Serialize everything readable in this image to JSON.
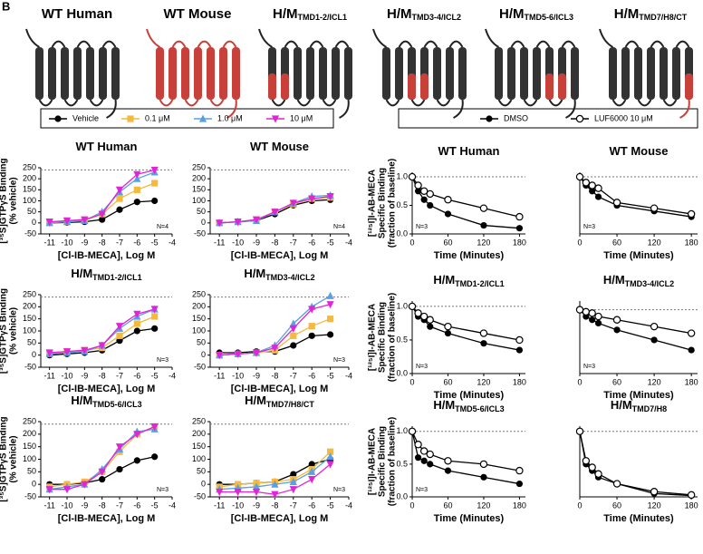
{
  "panel_label": "B",
  "receptors": [
    {
      "main": "WT Human"
    },
    {
      "main": "WT Mouse"
    },
    {
      "main": "H/M",
      "sub": "TMD1-2/ICL1"
    },
    {
      "main": "H/M",
      "sub": "TMD3-4/ICL2"
    },
    {
      "main": "H/M",
      "sub": "TMD5-6/ICL3"
    },
    {
      "main": "H/M",
      "sub": "TMD7/H8/CT"
    }
  ],
  "chart_data": [
    {
      "type": "line",
      "title": "WT Human",
      "x": [
        -11,
        -10,
        -9,
        -8,
        -7,
        -6,
        -5
      ],
      "xlim": [
        -11.5,
        -4
      ],
      "xticks": [
        -11,
        -10,
        -9,
        -8,
        -7,
        -6,
        -5,
        -4
      ],
      "ylim": [
        -50,
        250
      ],
      "yticks": [
        -50,
        0,
        50,
        100,
        150,
        200,
        250
      ],
      "ref_line": 240,
      "note": "N=4",
      "y_label": [
        "[³⁵S]GTPγS Binding",
        "(% vehicle)"
      ],
      "x_label": "[Cl-IB-MECA], Log M",
      "series": [
        {
          "name": "Vehicle",
          "color": "#000000",
          "marker": "circle",
          "values": [
            0,
            2,
            5,
            15,
            60,
            95,
            100
          ]
        },
        {
          "name": "0.1 μM",
          "color": "#f5b93e",
          "marker": "square",
          "values": [
            5,
            5,
            10,
            40,
            110,
            150,
            180
          ]
        },
        {
          "name": "1.0 μM",
          "color": "#5b9fe3",
          "marker": "triangle",
          "values": [
            0,
            5,
            10,
            50,
            140,
            200,
            230
          ]
        },
        {
          "name": "10 μM",
          "color": "#e024d8",
          "marker": "triangle-down",
          "values": [
            5,
            10,
            15,
            40,
            150,
            220,
            240
          ]
        }
      ]
    },
    {
      "type": "line",
      "title": "WT Mouse",
      "x": [
        -11,
        -10,
        -9,
        -8,
        -7,
        -6,
        -5
      ],
      "xlim": [
        -11.5,
        -4
      ],
      "xticks": [
        -11,
        -10,
        -9,
        -8,
        -7,
        -6,
        -5,
        -4
      ],
      "ylim": [
        -50,
        250
      ],
      "yticks": [
        -50,
        0,
        50,
        100,
        150,
        200,
        250
      ],
      "ref_line": 240,
      "note": "N=4",
      "x_label": "[Cl-IB-MECA], Log M",
      "series": [
        {
          "name": "Vehicle",
          "color": "#000000",
          "marker": "circle",
          "values": [
            0,
            5,
            10,
            40,
            80,
            100,
            105
          ]
        },
        {
          "name": "0.1 μM",
          "color": "#f5b93e",
          "marker": "square",
          "values": [
            0,
            5,
            15,
            50,
            85,
            110,
            115
          ]
        },
        {
          "name": "1.0 μM",
          "color": "#5b9fe3",
          "marker": "triangle",
          "values": [
            0,
            5,
            10,
            50,
            90,
            120,
            125
          ]
        },
        {
          "name": "10 μM",
          "color": "#e024d8",
          "marker": "triangle-down",
          "values": [
            0,
            5,
            15,
            50,
            90,
            110,
            120
          ]
        }
      ]
    },
    {
      "type": "line",
      "title": "H/M",
      "title_sub": "TMD1-2/ICL1",
      "x": [
        -11,
        -10,
        -9,
        -8,
        -7,
        -6,
        -5
      ],
      "xlim": [
        -11.5,
        -4
      ],
      "xticks": [
        -11,
        -10,
        -9,
        -8,
        -7,
        -6,
        -5,
        -4
      ],
      "ylim": [
        -50,
        250
      ],
      "yticks": [
        -50,
        0,
        50,
        100,
        150,
        200,
        250
      ],
      "ref_line": 240,
      "note": "N=3",
      "y_label": [
        "[³⁵S]GTPγS Binding",
        "(% vehicle)"
      ],
      "x_label": "[Cl-IB-MECA], Log M",
      "series": [
        {
          "name": "Vehicle",
          "color": "#000000",
          "marker": "circle",
          "values": [
            0,
            5,
            10,
            20,
            60,
            100,
            110
          ]
        },
        {
          "name": "0.1 μM",
          "color": "#f5b93e",
          "marker": "square",
          "values": [
            10,
            15,
            20,
            30,
            80,
            130,
            160
          ]
        },
        {
          "name": "1.0 μM",
          "color": "#5b9fe3",
          "marker": "triangle",
          "values": [
            5,
            10,
            15,
            40,
            110,
            160,
            190
          ]
        },
        {
          "name": "10 μM",
          "color": "#e024d8",
          "marker": "triangle-down",
          "values": [
            10,
            15,
            20,
            40,
            120,
            170,
            190
          ]
        }
      ]
    },
    {
      "type": "line",
      "title": "H/M",
      "title_sub": "TMD3-4/ICL2",
      "x": [
        -11,
        -10,
        -9,
        -8,
        -7,
        -6,
        -5
      ],
      "xlim": [
        -11.5,
        -4
      ],
      "xticks": [
        -11,
        -10,
        -9,
        -8,
        -7,
        -6,
        -5,
        -4
      ],
      "ylim": [
        -50,
        250
      ],
      "yticks": [
        -50,
        0,
        50,
        100,
        150,
        200,
        250
      ],
      "ref_line": 240,
      "note": "N=3",
      "x_label": "[Cl-IB-MECA], Log M",
      "series": [
        {
          "name": "Vehicle",
          "color": "#000000",
          "marker": "circle",
          "values": [
            10,
            10,
            15,
            15,
            40,
            80,
            85
          ]
        },
        {
          "name": "0.1 μM",
          "color": "#f5b93e",
          "marker": "square",
          "values": [
            0,
            5,
            10,
            20,
            80,
            120,
            150
          ]
        },
        {
          "name": "1.0 μM",
          "color": "#5b9fe3",
          "marker": "triangle",
          "values": [
            0,
            5,
            10,
            40,
            130,
            200,
            245
          ]
        },
        {
          "name": "10 μM",
          "color": "#e024d8",
          "marker": "triangle-down",
          "values": [
            0,
            5,
            10,
            30,
            110,
            190,
            210
          ]
        }
      ]
    },
    {
      "type": "line",
      "title": "H/M",
      "title_sub": "TMD5-6/ICL3",
      "x": [
        -11,
        -10,
        -9,
        -8,
        -7,
        -6,
        -5
      ],
      "xlim": [
        -11.5,
        -4
      ],
      "xticks": [
        -11,
        -10,
        -9,
        -8,
        -7,
        -6,
        -5,
        -4
      ],
      "ylim": [
        -50,
        250
      ],
      "yticks": [
        -50,
        0,
        50,
        100,
        150,
        200,
        250
      ],
      "ref_line": 240,
      "note": "N=3",
      "y_label": [
        "[³⁵S]GTPγS Binding",
        "(% vehicle)"
      ],
      "x_label": "[Cl-IB-MECA], Log M",
      "series": [
        {
          "name": "Vehicle",
          "color": "#000000",
          "marker": "circle",
          "values": [
            0,
            0,
            5,
            20,
            60,
            95,
            110
          ]
        },
        {
          "name": "0.1 μM",
          "color": "#f5b93e",
          "marker": "square",
          "values": [
            -10,
            0,
            10,
            50,
            130,
            200,
            230
          ]
        },
        {
          "name": "1.0 μM",
          "color": "#5b9fe3",
          "marker": "triangle",
          "values": [
            -20,
            -10,
            0,
            60,
            140,
            210,
            220
          ]
        },
        {
          "name": "10 μM",
          "color": "#e024d8",
          "marker": "triangle-down",
          "values": [
            -20,
            -20,
            0,
            50,
            150,
            200,
            230
          ]
        }
      ]
    },
    {
      "type": "line",
      "title": "H/M",
      "title_sub": "TMD7/H8/CT",
      "x": [
        -11,
        -10,
        -9,
        -8,
        -7,
        -6,
        -5
      ],
      "xlim": [
        -11.5,
        -4
      ],
      "xticks": [
        -11,
        -10,
        -9,
        -8,
        -7,
        -6,
        -5,
        -4
      ],
      "ylim": [
        -50,
        250
      ],
      "yticks": [
        -50,
        0,
        50,
        100,
        150,
        200,
        250
      ],
      "ref_line": 240,
      "note": "N=3",
      "x_label": "[Cl-IB-MECA], Log M",
      "series": [
        {
          "name": "Vehicle",
          "color": "#000000",
          "marker": "circle",
          "values": [
            0,
            0,
            5,
            10,
            40,
            80,
            100
          ]
        },
        {
          "name": "0.1 μM",
          "color": "#f5b93e",
          "marker": "square",
          "values": [
            -10,
            0,
            5,
            10,
            20,
            60,
            130
          ]
        },
        {
          "name": "1.0 μM",
          "color": "#5b9fe3",
          "marker": "triangle",
          "values": [
            -20,
            -15,
            -10,
            0,
            10,
            50,
            110
          ]
        },
        {
          "name": "10 μM",
          "color": "#e024d8",
          "marker": "triangle-down",
          "values": [
            -30,
            -30,
            -30,
            -40,
            -20,
            20,
            80
          ]
        }
      ]
    },
    {
      "type": "line",
      "title": "WT Human",
      "x": [
        0,
        10,
        20,
        30,
        60,
        120,
        180
      ],
      "xlim": [
        0,
        190
      ],
      "xticks": [
        0,
        60,
        120,
        180
      ],
      "ylim": [
        0,
        1.08
      ],
      "yticks": [
        {
          "value": 0,
          "label": "0.0"
        },
        {
          "value": 0.5,
          "label": "0.5"
        },
        {
          "value": 1,
          "label": "1.0"
        }
      ],
      "ref_line": 1,
      "note": "N=3",
      "y_label": [
        "[¹²⁵I]I-AB-MECA",
        "Specific Binding",
        "(fraction of baseline)"
      ],
      "x_label": "Time (Minutes)",
      "series": [
        {
          "name": "DMSO",
          "color": "#000000",
          "marker": "circle",
          "values": [
            1,
            0.75,
            0.6,
            0.5,
            0.35,
            0.15,
            0.1
          ]
        },
        {
          "name": "LUF6000 10 μM",
          "color": "#000000",
          "marker": "circle-open",
          "values": [
            1,
            0.85,
            0.75,
            0.7,
            0.6,
            0.45,
            0.3
          ]
        }
      ]
    },
    {
      "type": "line",
      "title": "WT Mouse",
      "x": [
        0,
        10,
        20,
        30,
        60,
        120,
        180
      ],
      "xlim": [
        0,
        190
      ],
      "xticks": [
        0,
        60,
        120,
        180
      ],
      "ylim": [
        0,
        1.08
      ],
      "ref_line": 1,
      "note": "N=3",
      "x_label": "Time (Minutes)",
      "series": [
        {
          "name": "DMSO",
          "color": "#000000",
          "marker": "circle",
          "values": [
            1,
            0.85,
            0.75,
            0.65,
            0.5,
            0.4,
            0.3
          ]
        },
        {
          "name": "LUF6000 10 μM",
          "color": "#000000",
          "marker": "circle-open",
          "values": [
            1,
            0.9,
            0.85,
            0.8,
            0.55,
            0.45,
            0.35
          ]
        }
      ]
    },
    {
      "type": "line",
      "title": "H/M",
      "title_sub": "TMD1-2/ICL1",
      "x": [
        0,
        10,
        20,
        30,
        60,
        120,
        180
      ],
      "xlim": [
        0,
        190
      ],
      "xticks": [
        0,
        60,
        120,
        180
      ],
      "ylim": [
        0,
        1.08
      ],
      "yticks": [
        {
          "value": 0,
          "label": "0.0"
        },
        {
          "value": 0.5,
          "label": "0.5"
        },
        {
          "value": 1,
          "label": "1.0"
        }
      ],
      "ref_line": 1,
      "note": "N=3",
      "y_label": [
        "[¹²⁵I]I-AB-MECA",
        "Specific Binding",
        "(fraction of baseline)"
      ],
      "x_label": "Time (Minutes)",
      "series": [
        {
          "name": "DMSO",
          "color": "#000000",
          "marker": "circle",
          "values": [
            1,
            0.85,
            0.8,
            0.7,
            0.6,
            0.45,
            0.35
          ]
        },
        {
          "name": "LUF6000 10 μM",
          "color": "#000000",
          "marker": "circle-open",
          "values": [
            1,
            0.9,
            0.85,
            0.8,
            0.7,
            0.6,
            0.5
          ]
        }
      ]
    },
    {
      "type": "line",
      "title": "H/M",
      "title_sub": "TMD3-4/ICL2",
      "x": [
        0,
        10,
        20,
        30,
        60,
        120,
        180
      ],
      "xlim": [
        0,
        190
      ],
      "xticks": [
        0,
        60,
        120,
        180
      ],
      "ylim": [
        0,
        1.08
      ],
      "ref_line": 0.95,
      "note": "N=3",
      "x_label": "Time (Minutes)",
      "series": [
        {
          "name": "DMSO",
          "color": "#000000",
          "marker": "circle",
          "values": [
            0.95,
            0.85,
            0.8,
            0.75,
            0.65,
            0.5,
            0.35
          ]
        },
        {
          "name": "LUF6000 10 μM",
          "color": "#000000",
          "marker": "circle-open",
          "values": [
            0.95,
            0.92,
            0.9,
            0.85,
            0.8,
            0.7,
            0.6
          ]
        }
      ]
    },
    {
      "type": "line",
      "title": "H/M",
      "title_sub": "TMD5-6/ICL3",
      "x": [
        0,
        10,
        20,
        30,
        60,
        120,
        180
      ],
      "xlim": [
        0,
        190
      ],
      "xticks": [
        0,
        60,
        120,
        180
      ],
      "ylim": [
        0,
        1.08
      ],
      "yticks": [
        {
          "value": 0,
          "label": "0.0"
        },
        {
          "value": 0.5,
          "label": "0.5"
        },
        {
          "value": 1,
          "label": "1.0"
        }
      ],
      "ref_line": 1,
      "note": "N=3",
      "y_label": [
        "[¹²⁵I]I-AB-MECA",
        "Specific Binding",
        "(fraction of baseline)"
      ],
      "x_label": "Time (Minutes)",
      "series": [
        {
          "name": "DMSO",
          "color": "#000000",
          "marker": "circle",
          "values": [
            1,
            0.6,
            0.55,
            0.5,
            0.4,
            0.3,
            0.2
          ]
        },
        {
          "name": "LUF6000 10 μM",
          "color": "#000000",
          "marker": "circle-open",
          "values": [
            1,
            0.8,
            0.7,
            0.65,
            0.55,
            0.5,
            0.4
          ]
        }
      ]
    },
    {
      "type": "line",
      "title": "H/M",
      "title_sub": "TMD7/H8",
      "x": [
        0,
        10,
        20,
        30,
        60,
        120,
        180
      ],
      "xlim": [
        0,
        190
      ],
      "xticks": [
        0,
        60,
        120,
        180
      ],
      "ylim": [
        0,
        1.08
      ],
      "ref_line": 1,
      "x_label": "Time (Minutes)",
      "series": [
        {
          "name": "DMSO",
          "color": "#000000",
          "marker": "circle",
          "values": [
            1,
            0.5,
            0.4,
            0.3,
            0.2,
            0.05,
            0.02
          ]
        },
        {
          "name": "LUF6000 10 μM",
          "color": "#000000",
          "marker": "circle-open",
          "values": [
            1,
            0.55,
            0.45,
            0.35,
            0.2,
            0.08,
            0.03
          ]
        }
      ]
    }
  ]
}
